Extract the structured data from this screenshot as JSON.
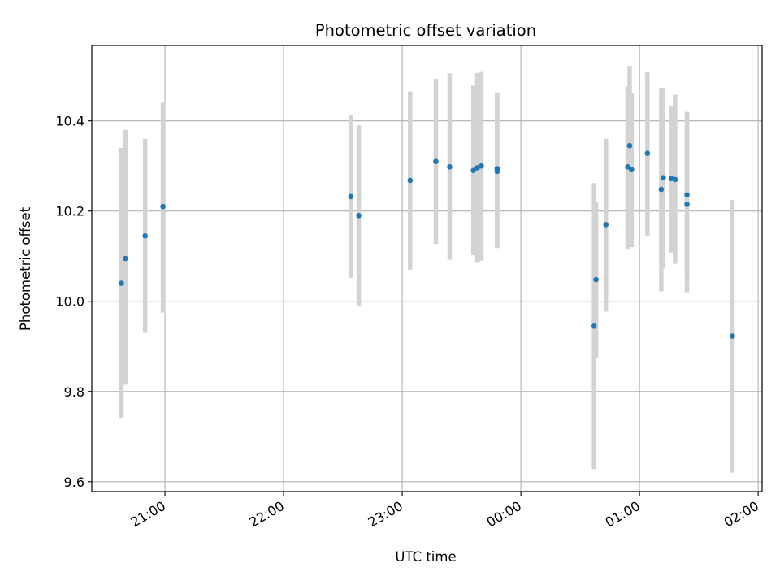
{
  "chart_data": {
    "type": "scatter",
    "title": "Photometric offset variation",
    "xlabel": "UTC time",
    "ylabel": "Photometric offset",
    "x_ticks": [
      "21:00",
      "22:00",
      "23:00",
      "00:00",
      "01:00",
      "02:00"
    ],
    "y_ticks": [
      "9.6",
      "9.8",
      "10.0",
      "10.2",
      "10.4"
    ],
    "xlim": [
      "20:23",
      "02:02"
    ],
    "ylim": [
      9.578,
      10.567
    ],
    "grid": true,
    "colors": {
      "point": "#1f77b4",
      "errorbar": "#d3d3d3",
      "grid": "#b0b0b0"
    },
    "points": [
      {
        "x": "20:38",
        "y": 10.04,
        "yerr_low": 9.74,
        "yerr_high": 10.34
      },
      {
        "x": "20:40",
        "y": 10.095,
        "yerr_low": 9.815,
        "yerr_high": 10.38
      },
      {
        "x": "20:50",
        "y": 10.145,
        "yerr_low": 9.93,
        "yerr_high": 10.36
      },
      {
        "x": "20:59",
        "y": 10.21,
        "yerr_low": 9.975,
        "yerr_high": 10.44
      },
      {
        "x": "22:34",
        "y": 10.232,
        "yerr_low": 10.052,
        "yerr_high": 10.412
      },
      {
        "x": "22:38",
        "y": 10.19,
        "yerr_low": 9.99,
        "yerr_high": 10.39
      },
      {
        "x": "23:04",
        "y": 10.268,
        "yerr_low": 10.07,
        "yerr_high": 10.465
      },
      {
        "x": "23:17",
        "y": 10.31,
        "yerr_low": 10.127,
        "yerr_high": 10.493
      },
      {
        "x": "23:24",
        "y": 10.298,
        "yerr_low": 10.092,
        "yerr_high": 10.505
      },
      {
        "x": "23:36",
        "y": 10.29,
        "yerr_low": 10.102,
        "yerr_high": 10.478
      },
      {
        "x": "23:38",
        "y": 10.296,
        "yerr_low": 10.085,
        "yerr_high": 10.506
      },
      {
        "x": "23:40",
        "y": 10.3,
        "yerr_low": 10.09,
        "yerr_high": 10.51
      },
      {
        "x": "23:48",
        "y": 10.288,
        "yerr_low": 10.118,
        "yerr_high": 10.463
      },
      {
        "x": "23:48",
        "y": 10.294,
        "yerr_low": 10.123,
        "yerr_high": 10.46
      },
      {
        "x": "00:37",
        "y": 9.945,
        "yerr_low": 9.628,
        "yerr_high": 10.262
      },
      {
        "x": "00:38",
        "y": 10.048,
        "yerr_low": 9.875,
        "yerr_high": 10.22
      },
      {
        "x": "00:43",
        "y": 10.17,
        "yerr_low": 9.977,
        "yerr_high": 10.36
      },
      {
        "x": "00:54",
        "y": 10.298,
        "yerr_low": 10.115,
        "yerr_high": 10.476
      },
      {
        "x": "00:55",
        "y": 10.345,
        "yerr_low": 10.13,
        "yerr_high": 10.522
      },
      {
        "x": "00:56",
        "y": 10.292,
        "yerr_low": 10.12,
        "yerr_high": 10.462
      },
      {
        "x": "01:04",
        "y": 10.328,
        "yerr_low": 10.145,
        "yerr_high": 10.507
      },
      {
        "x": "01:11",
        "y": 10.248,
        "yerr_low": 10.022,
        "yerr_high": 10.473
      },
      {
        "x": "01:12",
        "y": 10.274,
        "yerr_low": 10.073,
        "yerr_high": 10.473
      },
      {
        "x": "01:16",
        "y": 10.272,
        "yerr_low": 10.108,
        "yerr_high": 10.433
      },
      {
        "x": "01:18",
        "y": 10.27,
        "yerr_low": 10.083,
        "yerr_high": 10.458
      },
      {
        "x": "01:24",
        "y": 10.236,
        "yerr_low": 10.05,
        "yerr_high": 10.42
      },
      {
        "x": "01:24",
        "y": 10.215,
        "yerr_low": 10.02,
        "yerr_high": 10.415
      },
      {
        "x": "01:47",
        "y": 9.923,
        "yerr_low": 9.62,
        "yerr_high": 10.225
      }
    ]
  }
}
